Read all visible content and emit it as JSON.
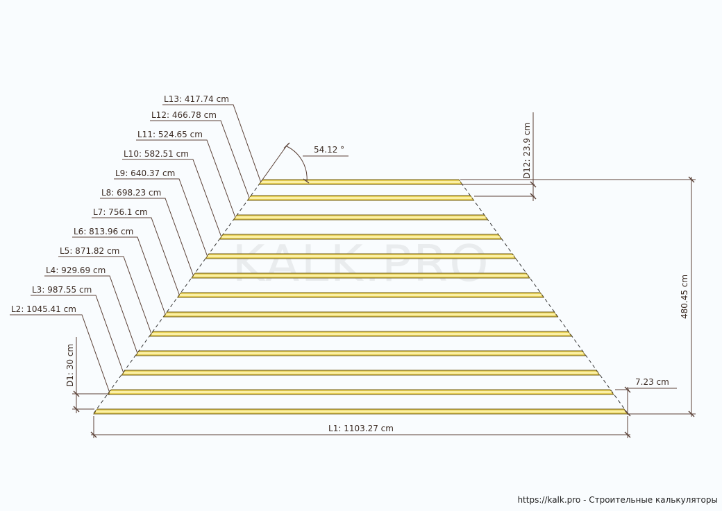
{
  "watermark": "KALK.PRO",
  "footer": "https://kalk.pro - Строительные калькуляторы",
  "angle_label": "54.12 °",
  "spacing_top_label": "D12: 23.9 cm",
  "spacing_bottom_label": "D1: 30 cm",
  "height_label": "480.45 cm",
  "board_width_label": "7.23 cm",
  "bottom_length_label": "L1: 1103.27 cm",
  "length_labels": [
    "L2: 1045.41 cm",
    "L3: 987.55 cm",
    "L4: 929.69 cm",
    "L5: 871.82 cm",
    "L6: 813.96 cm",
    "L7: 756.1 cm",
    "L8: 698.23 cm",
    "L9: 640.37 cm",
    "L10: 582.51 cm",
    "L11: 524.65 cm",
    "L12: 466.78 cm",
    "L13: 417.74 cm"
  ],
  "colors": {
    "board": "#e7cf54",
    "board_inner": "#fbf0a6",
    "lines": "#5a4036"
  }
}
